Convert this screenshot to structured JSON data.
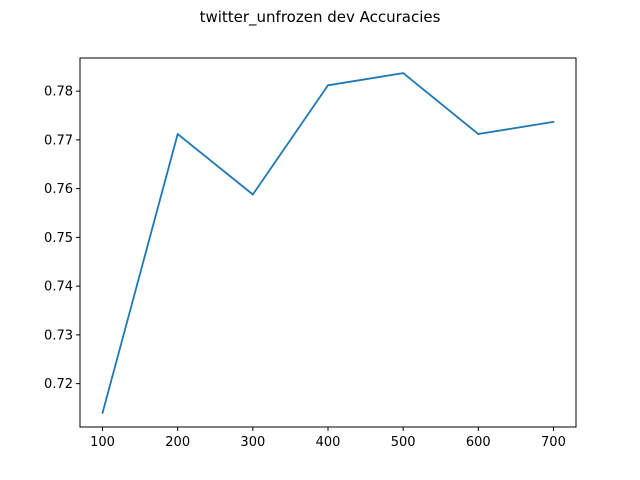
{
  "chart_data": {
    "type": "line",
    "title": "twitter_unfrozen dev Accuracies",
    "xlabel": "",
    "ylabel": "",
    "x": [
      100,
      200,
      300,
      400,
      500,
      600,
      700
    ],
    "series": [
      {
        "values": [
          0.714,
          0.7712,
          0.7588,
          0.7812,
          0.7837,
          0.7712,
          0.7737
        ]
      }
    ],
    "xlim": [
      70,
      730
    ],
    "ylim": [
      0.7111,
      0.7868
    ],
    "xticks": [
      100,
      200,
      300,
      400,
      500,
      600,
      700
    ],
    "yticks": [
      0.72,
      0.73,
      0.74,
      0.75,
      0.76,
      0.77,
      0.78
    ],
    "xtick_labels": [
      "100",
      "200",
      "300",
      "400",
      "500",
      "600",
      "700"
    ],
    "ytick_labels": [
      "0.72",
      "0.73",
      "0.74",
      "0.75",
      "0.76",
      "0.77",
      "0.78"
    ],
    "grid": false,
    "legend": "none",
    "colors": {
      "series": "#1f77b4"
    }
  }
}
